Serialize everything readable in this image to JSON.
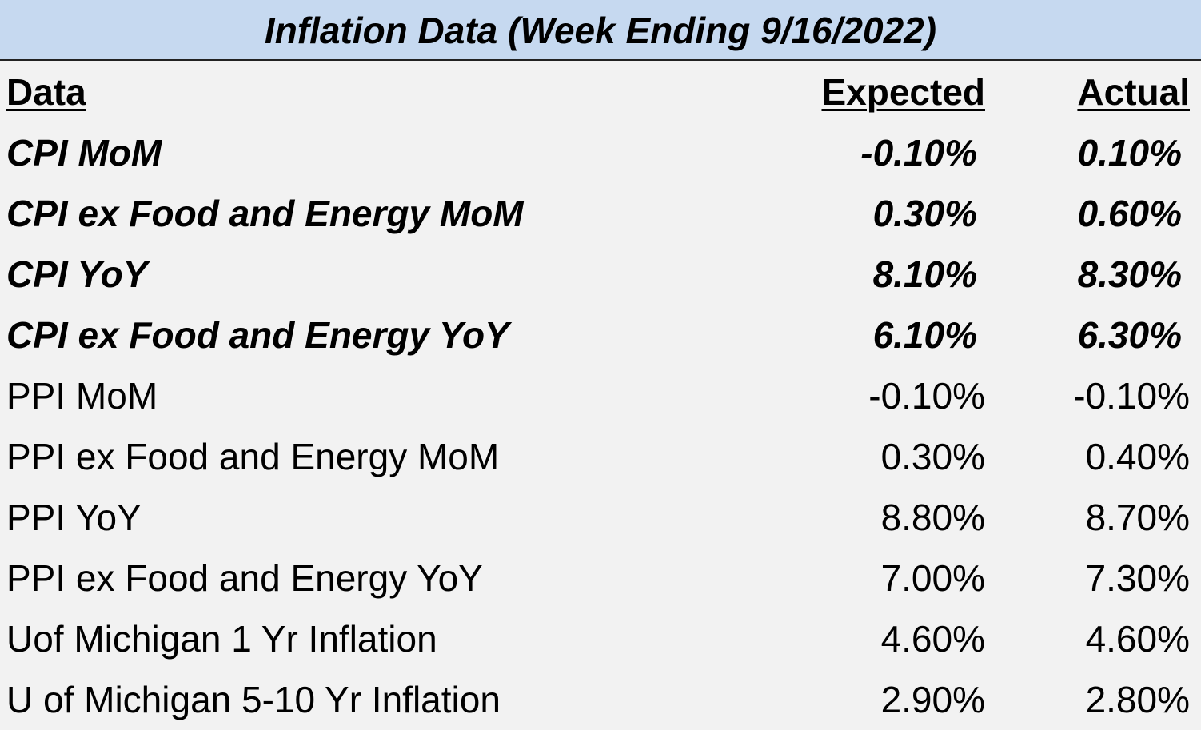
{
  "header": {
    "title": "Inflation Data (Week Ending 9/16/2022)"
  },
  "table": {
    "columns": [
      "Data",
      "Expected",
      "Actual"
    ],
    "rows": [
      [
        "CPI MoM",
        "-0.10%",
        "0.10%"
      ],
      [
        "CPI ex Food and Energy MoM",
        "0.30%",
        "0.60%"
      ],
      [
        "CPI YoY",
        "8.10%",
        "8.30%"
      ],
      [
        "CPI ex Food and Energy YoY",
        "6.10%",
        "6.30%"
      ],
      [
        "PPI MoM",
        "-0.10%",
        "-0.10%"
      ],
      [
        "PPI ex Food and Energy MoM",
        "0.30%",
        "0.40%"
      ],
      [
        "PPI YoY",
        "8.80%",
        "8.70%"
      ],
      [
        "PPI ex Food and Energy YoY",
        "7.00%",
        "7.30%"
      ],
      [
        "Uof Michigan 1 Yr Inflation",
        "4.60%",
        "4.60%"
      ],
      [
        "U of Michigan 5-10 Yr Inflation",
        "2.90%",
        "2.80%"
      ]
    ]
  }
}
